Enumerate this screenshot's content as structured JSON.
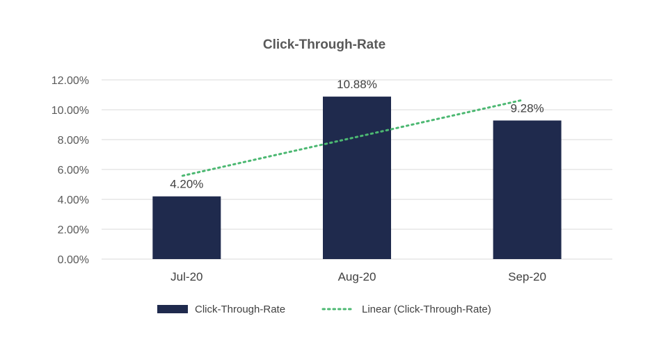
{
  "chart_data": {
    "type": "bar",
    "title": "Click-Through-Rate",
    "categories": [
      "Jul-20",
      "Aug-20",
      "Sep-20"
    ],
    "series": [
      {
        "name": "Click-Through-Rate",
        "values": [
          4.2,
          10.88,
          9.28
        ],
        "labels": [
          "4.20%",
          "10.88%",
          "9.28%"
        ],
        "color": "#1f2a4d"
      }
    ],
    "trendline": {
      "name": "Linear (Click-Through-Rate)",
      "type": "linear",
      "color": "#4cb872",
      "style": "dotted"
    },
    "ylim": [
      0,
      12
    ],
    "yticks": [
      0,
      2,
      4,
      6,
      8,
      10,
      12
    ],
    "ytick_labels": [
      "0.00%",
      "2.00%",
      "4.00%",
      "6.00%",
      "8.00%",
      "10.00%",
      "12.00%"
    ],
    "xlabel": "",
    "ylabel": "",
    "grid": true,
    "gridline_color": "#d9d9d9",
    "legend_position": "bottom"
  }
}
